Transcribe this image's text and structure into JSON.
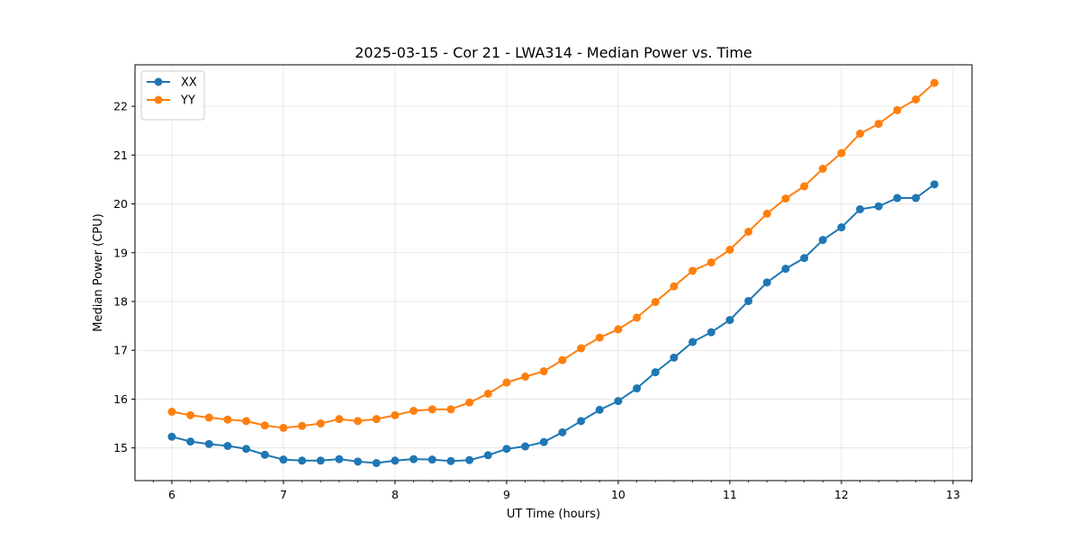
{
  "chart_data": {
    "type": "line",
    "title": "2025-03-15 - Cor 21 - LWA314 - Median Power vs. Time",
    "xlabel": "UT Time (hours)",
    "ylabel": "Median Power (CPU)",
    "xlim": [
      5.67,
      13.17
    ],
    "ylim": [
      14.33,
      22.85
    ],
    "xticks": [
      6,
      7,
      8,
      9,
      10,
      11,
      12,
      13
    ],
    "yticks": [
      15,
      16,
      17,
      18,
      19,
      20,
      21,
      22
    ],
    "grid": true,
    "legend_position": "upper left",
    "x": [
      6.0,
      6.1667,
      6.3333,
      6.5,
      6.6667,
      6.8333,
      7.0,
      7.1667,
      7.3333,
      7.5,
      7.6667,
      7.8333,
      8.0,
      8.1667,
      8.3333,
      8.5,
      8.6667,
      8.8333,
      9.0,
      9.1667,
      9.3333,
      9.5,
      9.6667,
      9.8333,
      10.0,
      10.1667,
      10.3333,
      10.5,
      10.6667,
      10.8333,
      11.0,
      11.1667,
      11.3333,
      11.5,
      11.6667,
      11.8333,
      12.0,
      12.1667,
      12.3333,
      12.5,
      12.6667,
      12.8333
    ],
    "series": [
      {
        "name": "XX",
        "color": "#1f77b4",
        "values": [
          15.23,
          15.13,
          15.08,
          15.04,
          14.98,
          14.86,
          14.76,
          14.74,
          14.74,
          14.77,
          14.72,
          14.69,
          14.74,
          14.77,
          14.76,
          14.73,
          14.75,
          14.85,
          14.98,
          15.03,
          15.12,
          15.32,
          15.55,
          15.78,
          15.96,
          16.22,
          16.55,
          16.85,
          17.17,
          17.37,
          17.62,
          18.01,
          18.39,
          18.67,
          18.89,
          19.26,
          19.52,
          19.89,
          19.95,
          20.12,
          20.12,
          20.4
        ]
      },
      {
        "name": "YY",
        "color": "#ff7f0e",
        "values": [
          15.74,
          15.67,
          15.62,
          15.58,
          15.55,
          15.46,
          15.41,
          15.45,
          15.5,
          15.59,
          15.55,
          15.59,
          15.67,
          15.76,
          15.79,
          15.79,
          15.93,
          16.11,
          16.34,
          16.46,
          16.57,
          16.8,
          17.04,
          17.26,
          17.43,
          17.67,
          17.99,
          18.31,
          18.63,
          18.8,
          19.06,
          19.43,
          19.8,
          20.11,
          20.36,
          20.72,
          21.04,
          21.44,
          21.64,
          21.92,
          22.14,
          22.48
        ]
      }
    ]
  }
}
